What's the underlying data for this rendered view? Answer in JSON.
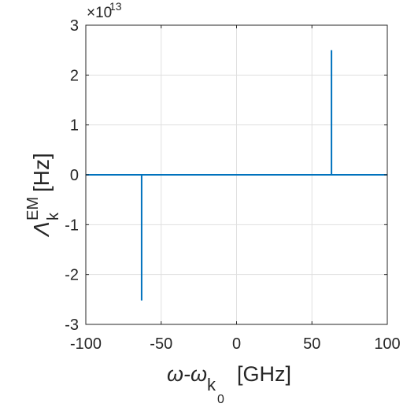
{
  "chart_data": {
    "type": "line",
    "xlabel": {
      "main": "ω-ω",
      "sub1": "k",
      "sub2": "0",
      "unit": "[GHz]"
    },
    "ylabel": {
      "main": "Λ",
      "sup": "EM",
      "sub": "k",
      "unit": "[Hz]"
    },
    "xlim": [
      -100,
      100
    ],
    "ylim": [
      -30000000000000.0,
      30000000000000.0
    ],
    "x_ticks": [
      "-100",
      "-50",
      "0",
      "50",
      "100"
    ],
    "y_ticks": [
      "-3",
      "-2",
      "-1",
      "0",
      "1",
      "2",
      "3"
    ],
    "y_exponent": {
      "base": "×10",
      "power": "13"
    },
    "grid": true,
    "series": [
      {
        "color": "#0072bd",
        "x": [
          -100,
          -63,
          -63,
          -63,
          63,
          63,
          63,
          100
        ],
        "y": [
          0,
          0,
          -25200000000000.0,
          0,
          0,
          25000000000000.0,
          0,
          0
        ]
      }
    ]
  }
}
